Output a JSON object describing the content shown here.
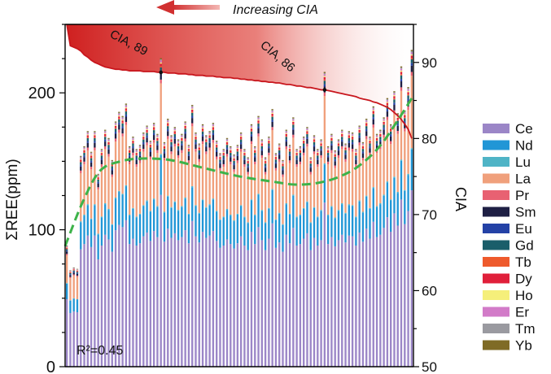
{
  "chart_data": {
    "type": "bar",
    "stacked": true,
    "n_samples": 100,
    "annotation_top": "Increasing CIA",
    "ylabel_left": "ΣREE(ppm)",
    "ylabel_right": "CIA",
    "ylim_left": [
      0,
      250
    ],
    "ylim_right": [
      50,
      95
    ],
    "yticks_left": [
      "0",
      "100",
      "200"
    ],
    "yticks_left_values": [
      0,
      100,
      200
    ],
    "yticks_right": [
      "50",
      "60",
      "70",
      "80",
      "90"
    ],
    "yticks_right_values": [
      50,
      60,
      70,
      80,
      90
    ],
    "r2_label": "R²=0.45",
    "cia_callouts": [
      {
        "label": "CIA, 89",
        "sample": 27,
        "cia": 89
      },
      {
        "label": "CIA, 86",
        "sample": 74,
        "cia": 86
      }
    ],
    "cia_curve_note": "CIA per sample (right axis)",
    "cia_curve": [
      95.0,
      92.2,
      92.0,
      91.8,
      91.5,
      91.0,
      90.7,
      90.3,
      90.0,
      89.8,
      89.6,
      89.4,
      89.3,
      89.2,
      89.1,
      89.1,
      89.0,
      89.0,
      88.9,
      88.9,
      88.9,
      88.9,
      88.8,
      88.8,
      88.8,
      88.8,
      88.7,
      88.7,
      88.7,
      88.6,
      88.6,
      88.6,
      88.5,
      88.5,
      88.5,
      88.4,
      88.4,
      88.3,
      88.3,
      88.3,
      88.2,
      88.2,
      88.2,
      88.1,
      88.1,
      88.0,
      88.0,
      88.0,
      87.9,
      87.9,
      87.8,
      87.8,
      87.7,
      87.7,
      87.6,
      87.6,
      87.5,
      87.5,
      87.4,
      87.4,
      87.3,
      87.3,
      87.2,
      87.1,
      87.1,
      87.0,
      86.9,
      86.9,
      86.8,
      86.7,
      86.7,
      86.6,
      86.5,
      86.4,
      86.4,
      86.3,
      86.2,
      86.1,
      86.0,
      85.9,
      85.8,
      85.7,
      85.6,
      85.5,
      85.3,
      85.2,
      85.1,
      85.0,
      84.8,
      84.7,
      84.5,
      84.3,
      84.1,
      83.8,
      83.4,
      83.0,
      82.5,
      81.9,
      81.2,
      80.0
    ],
    "trend_note": "dashed green regression trend (left axis)",
    "trend_curve": [
      [
        0,
        88
      ],
      [
        5,
        120
      ],
      [
        10,
        143
      ],
      [
        16,
        150
      ],
      [
        22,
        152
      ],
      [
        30,
        151
      ],
      [
        40,
        145
      ],
      [
        50,
        139
      ],
      [
        60,
        135
      ],
      [
        66,
        133
      ],
      [
        72,
        134
      ],
      [
        78,
        138
      ],
      [
        84,
        146
      ],
      [
        90,
        160
      ],
      [
        95,
        178
      ],
      [
        100,
        198
      ]
    ],
    "components": [
      "Ce",
      "Nd",
      "Lu",
      "La",
      "Pr",
      "Sm",
      "Eu",
      "Gd",
      "Tb",
      "Dy",
      "Ho",
      "Er",
      "Tm",
      "Yb"
    ],
    "component_fractions": {
      "Ce": 0.56,
      "Nd": 0.13,
      "Lu": 0.004,
      "La": 0.23,
      "Pr": 0.012,
      "Sm": 0.02,
      "Eu": 0.008,
      "Gd": 0.012,
      "Tb": 0.004,
      "Dy": 0.008,
      "Ho": 0.004,
      "Er": 0.006,
      "Tm": 0.004,
      "Yb": 0.004
    },
    "total_ree": [
      88,
      70,
      72,
      71,
      153,
      160,
      171,
      156,
      171,
      140,
      158,
      172,
      166,
      150,
      178,
      185,
      182,
      191,
      160,
      167,
      158,
      161,
      170,
      175,
      164,
      177,
      169,
      224,
      163,
      180,
      168,
      174,
      165,
      169,
      178,
      161,
      190,
      170,
      162,
      176,
      168,
      171,
      177,
      164,
      155,
      158,
      166,
      160,
      154,
      161,
      170,
      158,
      152,
      176,
      160,
      182,
      165,
      152,
      167,
      187,
      155,
      162,
      150,
      172,
      161,
      181,
      158,
      160,
      167,
      174,
      152,
      168,
      158,
      165,
      214,
      160,
      169,
      157,
      165,
      172,
      162,
      171,
      170,
      158,
      175,
      163,
      180,
      167,
      189,
      169,
      172,
      181,
      195,
      176,
      200,
      184,
      218,
      186,
      203,
      230
    ],
    "legend": [
      "Ce",
      "Nd",
      "Lu",
      "La",
      "Pr",
      "Sm",
      "Eu",
      "Gd",
      "Tb",
      "Dy",
      "Ho",
      "Er",
      "Tm",
      "Yb"
    ],
    "legend_placement": "right"
  },
  "colors": {
    "Ce": "#9b86c7",
    "Nd": "#2196d6",
    "Lu": "#4fb4c6",
    "La": "#f0a07c",
    "Pr": "#e86172",
    "Sm": "#1e1f44",
    "Eu": "#2442a6",
    "Gd": "#1a5e6a",
    "Tb": "#ee5a2c",
    "Dy": "#e01f3a",
    "Ho": "#f5ef7a",
    "Er": "#d27bc8",
    "Tm": "#9a9aa0",
    "Yb": "#7f6b26",
    "cia_band": "#d42a2a",
    "cia_line": "#c8161d",
    "trend": "#3db34a",
    "arrow": "#d13030",
    "axis": "#000000"
  }
}
